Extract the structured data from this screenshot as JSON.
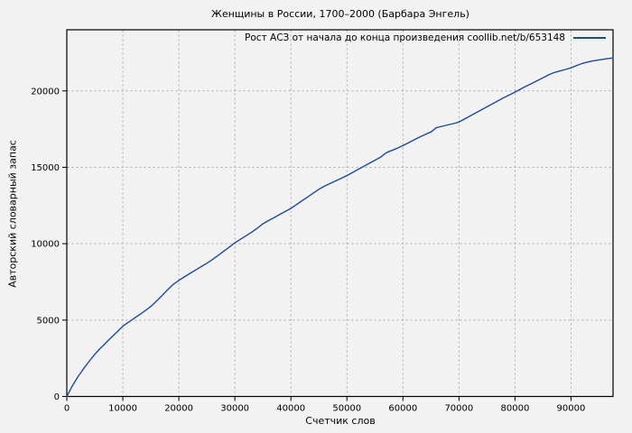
{
  "title": "Женщины в России, 1700–2000 (Барбара Энгель)",
  "legend": {
    "label": "Рост АСЗ от начала до конца произведения coollib.net/b/653148"
  },
  "colors": {
    "line": "#1c4a9e",
    "background": "#f2f2f2",
    "grid": "#a9a9a9",
    "border": "#000000",
    "text": "#000000"
  },
  "chart_data": {
    "type": "line",
    "title": "Женщины в России, 1700–2000 (Барбара Энгель)",
    "xlabel": "Счетчик слов",
    "ylabel": "Авторский словарный запас",
    "xlim": [
      0,
      97500
    ],
    "ylim": [
      0,
      24000
    ],
    "xticks": [
      0,
      10000,
      20000,
      30000,
      40000,
      50000,
      60000,
      70000,
      80000,
      90000
    ],
    "yticks": [
      0,
      5000,
      10000,
      15000,
      20000
    ],
    "grid": "dashed",
    "legend_position": "top-right-inside",
    "series": [
      {
        "name": "Рост АСЗ от начала до конца произведения coollib.net/b/653148",
        "color": "#1c4a9e",
        "points": [
          [
            0,
            0
          ],
          [
            500,
            350
          ],
          [
            1000,
            700
          ],
          [
            1500,
            1000
          ],
          [
            2000,
            1300
          ],
          [
            2500,
            1560
          ],
          [
            3000,
            1820
          ],
          [
            3500,
            2060
          ],
          [
            4000,
            2300
          ],
          [
            4500,
            2530
          ],
          [
            5000,
            2760
          ],
          [
            5500,
            2960
          ],
          [
            6000,
            3160
          ],
          [
            6500,
            3330
          ],
          [
            7000,
            3520
          ],
          [
            7500,
            3700
          ],
          [
            8000,
            3880
          ],
          [
            8500,
            4060
          ],
          [
            9000,
            4230
          ],
          [
            9500,
            4420
          ],
          [
            10000,
            4600
          ],
          [
            11000,
            4860
          ],
          [
            12000,
            5110
          ],
          [
            13000,
            5360
          ],
          [
            14000,
            5620
          ],
          [
            15000,
            5890
          ],
          [
            16000,
            6240
          ],
          [
            17000,
            6600
          ],
          [
            18000,
            6990
          ],
          [
            19000,
            7330
          ],
          [
            20000,
            7600
          ],
          [
            21000,
            7830
          ],
          [
            22000,
            8060
          ],
          [
            23000,
            8280
          ],
          [
            24000,
            8500
          ],
          [
            25000,
            8720
          ],
          [
            26000,
            8960
          ],
          [
            27000,
            9230
          ],
          [
            28000,
            9500
          ],
          [
            29000,
            9780
          ],
          [
            30000,
            10060
          ],
          [
            31000,
            10290
          ],
          [
            32000,
            10520
          ],
          [
            33000,
            10760
          ],
          [
            34000,
            11010
          ],
          [
            35000,
            11300
          ],
          [
            36000,
            11510
          ],
          [
            37000,
            11710
          ],
          [
            38000,
            11910
          ],
          [
            39000,
            12110
          ],
          [
            40000,
            12310
          ],
          [
            41000,
            12560
          ],
          [
            42000,
            12810
          ],
          [
            43000,
            13060
          ],
          [
            44000,
            13310
          ],
          [
            45000,
            13560
          ],
          [
            46000,
            13760
          ],
          [
            47000,
            13940
          ],
          [
            48000,
            14110
          ],
          [
            49000,
            14280
          ],
          [
            50000,
            14460
          ],
          [
            51000,
            14660
          ],
          [
            52000,
            14860
          ],
          [
            53000,
            15060
          ],
          [
            54000,
            15260
          ],
          [
            55000,
            15460
          ],
          [
            56000,
            15660
          ],
          [
            57000,
            15950
          ],
          [
            58000,
            16100
          ],
          [
            59000,
            16250
          ],
          [
            60000,
            16420
          ],
          [
            61000,
            16610
          ],
          [
            62000,
            16800
          ],
          [
            63000,
            16980
          ],
          [
            64000,
            17150
          ],
          [
            65000,
            17310
          ],
          [
            66000,
            17600
          ],
          [
            67000,
            17680
          ],
          [
            68000,
            17770
          ],
          [
            69000,
            17860
          ],
          [
            70000,
            17960
          ],
          [
            71000,
            18160
          ],
          [
            72000,
            18360
          ],
          [
            73000,
            18560
          ],
          [
            74000,
            18760
          ],
          [
            75000,
            18960
          ],
          [
            76000,
            19160
          ],
          [
            77000,
            19360
          ],
          [
            78000,
            19560
          ],
          [
            79000,
            19740
          ],
          [
            80000,
            19920
          ],
          [
            81000,
            20120
          ],
          [
            82000,
            20310
          ],
          [
            83000,
            20490
          ],
          [
            84000,
            20670
          ],
          [
            85000,
            20860
          ],
          [
            86000,
            21050
          ],
          [
            87000,
            21200
          ],
          [
            88000,
            21300
          ],
          [
            89000,
            21400
          ],
          [
            90000,
            21510
          ],
          [
            91000,
            21660
          ],
          [
            92000,
            21790
          ],
          [
            93000,
            21890
          ],
          [
            94000,
            21970
          ],
          [
            95000,
            22030
          ],
          [
            96000,
            22090
          ],
          [
            97500,
            22160
          ]
        ]
      }
    ]
  }
}
